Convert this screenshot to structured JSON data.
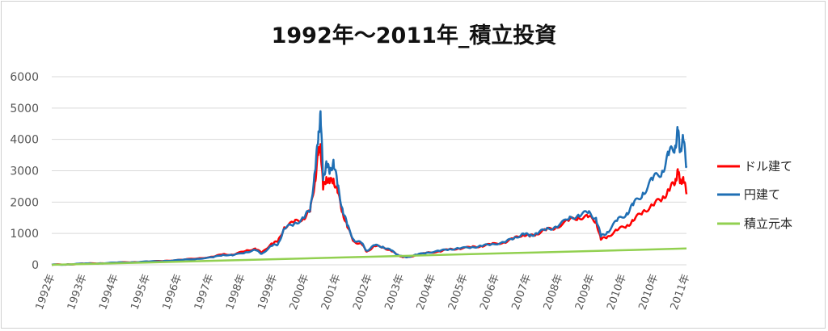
{
  "chart_data": {
    "type": "line",
    "title": "1992年～2011年_積立投資",
    "xlabel": "",
    "ylabel": "",
    "ylim": [
      0,
      6000
    ],
    "yticks": [
      0,
      1000,
      2000,
      3000,
      4000,
      5000,
      6000
    ],
    "xlim": [
      1992.0,
      2011.65
    ],
    "xtick_labels": [
      "1992年",
      "1993年",
      "1994年",
      "1995年",
      "1996年",
      "1997年",
      "1998年",
      "1999年",
      "2000年",
      "2001年",
      "2002年",
      "2003年",
      "2004年",
      "2005年",
      "2006年",
      "2007年",
      "2008年",
      "2009年",
      "2010年",
      "2010年",
      "2011年"
    ],
    "grid": true,
    "legend_position": "right",
    "series": [
      {
        "name": "ドル建て",
        "color": "#ff0000",
        "points": [
          [
            1992.0,
            0
          ],
          [
            1992.5,
            15
          ],
          [
            1993.0,
            35
          ],
          [
            1993.5,
            50
          ],
          [
            1994.0,
            65
          ],
          [
            1994.5,
            85
          ],
          [
            1995.0,
            100
          ],
          [
            1995.5,
            125
          ],
          [
            1996.0,
            160
          ],
          [
            1996.5,
            200
          ],
          [
            1997.0,
            260
          ],
          [
            1997.3,
            340
          ],
          [
            1997.6,
            320
          ],
          [
            1998.0,
            440
          ],
          [
            1998.3,
            520
          ],
          [
            1998.5,
            380
          ],
          [
            1998.8,
            680
          ],
          [
            1999.0,
            730
          ],
          [
            1999.2,
            1200
          ],
          [
            1999.5,
            1350
          ],
          [
            1999.8,
            1500
          ],
          [
            2000.0,
            1700
          ],
          [
            2000.15,
            2700
          ],
          [
            2000.25,
            3500
          ],
          [
            2000.32,
            3850
          ],
          [
            2000.4,
            2400
          ],
          [
            2000.5,
            2800
          ],
          [
            2000.6,
            2600
          ],
          [
            2000.72,
            2750
          ],
          [
            2000.85,
            2300
          ],
          [
            2001.0,
            1700
          ],
          [
            2001.15,
            1200
          ],
          [
            2001.35,
            750
          ],
          [
            2001.6,
            650
          ],
          [
            2001.75,
            420
          ],
          [
            2002.0,
            600
          ],
          [
            2002.25,
            560
          ],
          [
            2002.5,
            450
          ],
          [
            2002.7,
            320
          ],
          [
            2002.85,
            250
          ],
          [
            2003.0,
            240
          ],
          [
            2003.3,
            310
          ],
          [
            2003.6,
            380
          ],
          [
            2004.0,
            430
          ],
          [
            2004.3,
            490
          ],
          [
            2004.6,
            520
          ],
          [
            2005.0,
            560
          ],
          [
            2005.3,
            600
          ],
          [
            2005.6,
            650
          ],
          [
            2006.0,
            720
          ],
          [
            2006.3,
            830
          ],
          [
            2006.6,
            980
          ],
          [
            2006.8,
            900
          ],
          [
            2007.0,
            1000
          ],
          [
            2007.3,
            1100
          ],
          [
            2007.6,
            1200
          ],
          [
            2008.0,
            1400
          ],
          [
            2008.3,
            1520
          ],
          [
            2008.6,
            1520
          ],
          [
            2008.85,
            1400
          ],
          [
            2009.0,
            800
          ],
          [
            2009.2,
            900
          ],
          [
            2009.5,
            1100
          ],
          [
            2009.8,
            1250
          ],
          [
            2010.0,
            1400
          ],
          [
            2010.3,
            1700
          ],
          [
            2010.6,
            1900
          ],
          [
            2010.9,
            2100
          ],
          [
            2011.1,
            2400
          ],
          [
            2011.3,
            2600
          ],
          [
            2011.38,
            3050
          ],
          [
            2011.45,
            2600
          ],
          [
            2011.55,
            2800
          ],
          [
            2011.65,
            2250
          ]
        ]
      },
      {
        "name": "円建て",
        "color": "#1f6fb4",
        "points": [
          [
            1992.0,
            0
          ],
          [
            1992.5,
            15
          ],
          [
            1993.0,
            35
          ],
          [
            1993.5,
            50
          ],
          [
            1994.0,
            65
          ],
          [
            1994.5,
            85
          ],
          [
            1995.0,
            100
          ],
          [
            1995.5,
            125
          ],
          [
            1996.0,
            150
          ],
          [
            1996.5,
            190
          ],
          [
            1997.0,
            240
          ],
          [
            1997.3,
            320
          ],
          [
            1997.6,
            300
          ],
          [
            1998.0,
            400
          ],
          [
            1998.3,
            470
          ],
          [
            1998.5,
            350
          ],
          [
            1998.8,
            600
          ],
          [
            1999.0,
            650
          ],
          [
            1999.2,
            1150
          ],
          [
            1999.5,
            1300
          ],
          [
            1999.8,
            1500
          ],
          [
            2000.0,
            1750
          ],
          [
            2000.15,
            3000
          ],
          [
            2000.25,
            4000
          ],
          [
            2000.32,
            4900
          ],
          [
            2000.4,
            2700
          ],
          [
            2000.5,
            3300
          ],
          [
            2000.6,
            2900
          ],
          [
            2000.72,
            3350
          ],
          [
            2000.85,
            2500
          ],
          [
            2001.0,
            1800
          ],
          [
            2001.15,
            1250
          ],
          [
            2001.35,
            800
          ],
          [
            2001.6,
            680
          ],
          [
            2001.75,
            450
          ],
          [
            2002.0,
            620
          ],
          [
            2002.25,
            580
          ],
          [
            2002.5,
            460
          ],
          [
            2002.7,
            330
          ],
          [
            2002.85,
            260
          ],
          [
            2003.0,
            250
          ],
          [
            2003.3,
            320
          ],
          [
            2003.6,
            390
          ],
          [
            2004.0,
            440
          ],
          [
            2004.3,
            500
          ],
          [
            2004.6,
            520
          ],
          [
            2005.0,
            560
          ],
          [
            2005.3,
            600
          ],
          [
            2005.6,
            650
          ],
          [
            2006.0,
            720
          ],
          [
            2006.3,
            840
          ],
          [
            2006.6,
            1000
          ],
          [
            2006.8,
            920
          ],
          [
            2007.0,
            1010
          ],
          [
            2007.3,
            1120
          ],
          [
            2007.6,
            1220
          ],
          [
            2008.0,
            1450
          ],
          [
            2008.3,
            1600
          ],
          [
            2008.6,
            1650
          ],
          [
            2008.85,
            1500
          ],
          [
            2009.0,
            900
          ],
          [
            2009.2,
            1050
          ],
          [
            2009.5,
            1400
          ],
          [
            2009.8,
            1650
          ],
          [
            2010.0,
            1900
          ],
          [
            2010.3,
            2300
          ],
          [
            2010.6,
            2700
          ],
          [
            2010.9,
            3000
          ],
          [
            2011.1,
            3500
          ],
          [
            2011.3,
            3800
          ],
          [
            2011.38,
            4250
          ],
          [
            2011.45,
            3700
          ],
          [
            2011.55,
            4000
          ],
          [
            2011.65,
            3150
          ]
        ]
      },
      {
        "name": "積立元本",
        "color": "#92d050",
        "points": [
          [
            1992.0,
            0
          ],
          [
            1995.0,
            75
          ],
          [
            1998.0,
            155
          ],
          [
            2001.0,
            235
          ],
          [
            2004.0,
            315
          ],
          [
            2007.0,
            395
          ],
          [
            2010.0,
            475
          ],
          [
            2011.65,
            520
          ]
        ]
      }
    ]
  }
}
